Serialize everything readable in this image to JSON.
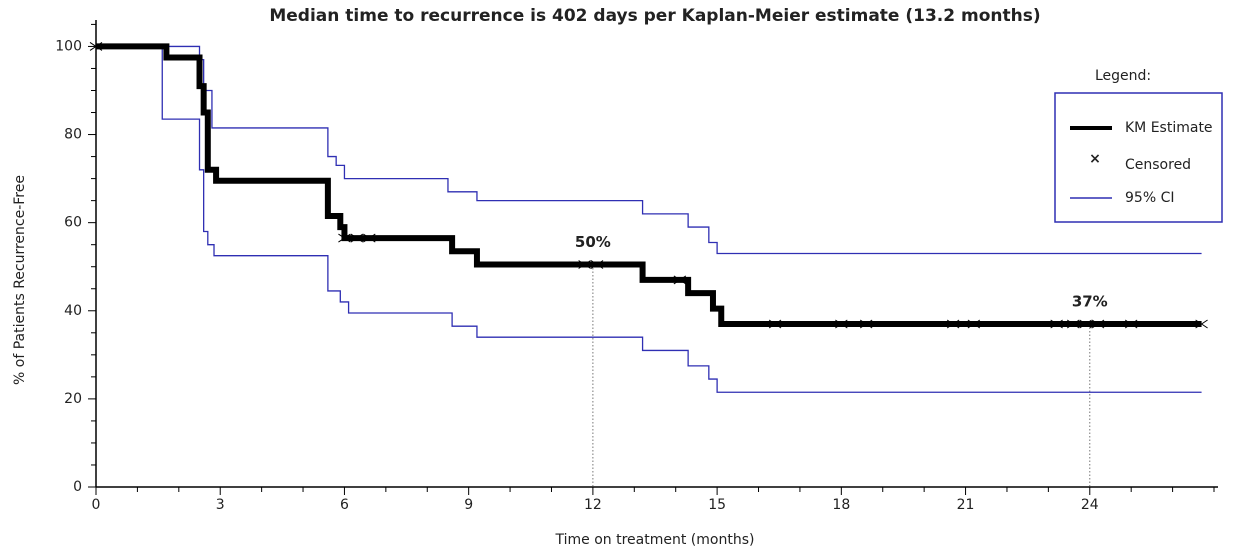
{
  "chart_data": {
    "type": "step",
    "title": "Median time to recurrence is 402 days per Kaplan-Meier estimate (13.2 months)",
    "xlabel": "Time on treatment (months)",
    "ylabel": "% of Patients Recurrence-Free",
    "xlim": [
      0,
      27
    ],
    "ylim": [
      0,
      106
    ],
    "xticks": [
      0,
      3,
      6,
      9,
      12,
      15,
      18,
      21,
      24
    ],
    "yticks": [
      0,
      20,
      40,
      60,
      80,
      100
    ],
    "xminorticks": [
      1,
      2,
      4,
      5,
      7,
      8,
      10,
      11,
      13,
      14,
      16,
      17,
      19,
      20,
      22,
      23,
      25,
      26,
      27
    ],
    "yminorticks": [
      5,
      10,
      15,
      25,
      30,
      35,
      45,
      50,
      55,
      65,
      70,
      75,
      85,
      90,
      95,
      105
    ],
    "legend_title": "Legend:",
    "legend": "upper right",
    "series": [
      {
        "name": "KM Estimate",
        "color": "#000000",
        "x": [
          0,
          1.7,
          1.7,
          2.5,
          2.5,
          2.6,
          2.6,
          2.7,
          2.7,
          2.9,
          2.9,
          5.6,
          5.6,
          5.9,
          5.9,
          6.0,
          6.0,
          8.6,
          8.6,
          9.2,
          9.2,
          13.2,
          13.2,
          14.3,
          14.3,
          14.9,
          14.9,
          15.1,
          15.1,
          26.7
        ],
        "values": [
          100,
          100,
          97.5,
          97.5,
          91,
          91,
          85,
          85,
          72,
          72,
          69.5,
          69.5,
          61.5,
          61.5,
          59,
          59,
          56.5,
          56.5,
          53.5,
          53.5,
          50.5,
          50.5,
          47,
          47,
          44,
          44,
          40.5,
          40.5,
          37,
          37
        ]
      },
      {
        "name": "Censored",
        "color": "#000000",
        "marker": "x",
        "x": [
          0,
          6.0,
          6.3,
          6.6,
          11.8,
          12.1,
          14.1,
          16.4,
          18.0,
          18.6,
          20.7,
          21.2,
          23.2,
          23.6,
          23.9,
          24.2,
          25.0,
          26.7
        ],
        "values": [
          100,
          56.5,
          56.5,
          56.5,
          50.5,
          50.5,
          47,
          37,
          37,
          37,
          37,
          37,
          37,
          37,
          37,
          37,
          37,
          37
        ]
      },
      {
        "name": "95% CI",
        "color": "#2f2fb3",
        "upper": {
          "x": [
            0,
            2.5,
            2.5,
            2.6,
            2.6,
            2.8,
            2.8,
            5.6,
            5.6,
            5.8,
            5.8,
            6.0,
            6.0,
            8.5,
            8.5,
            9.2,
            9.2,
            13.2,
            13.2,
            14.3,
            14.3,
            14.8,
            14.8,
            15.0,
            15.0,
            26.7
          ],
          "values": [
            100,
            100,
            97,
            97,
            90,
            90,
            81.5,
            81.5,
            75,
            75,
            73,
            73,
            70,
            70,
            67,
            67,
            65,
            65,
            62,
            62,
            59,
            59,
            55.5,
            55.5,
            53,
            53
          ]
        },
        "lower": {
          "x": [
            0,
            1.6,
            1.6,
            2.5,
            2.5,
            2.6,
            2.6,
            2.7,
            2.7,
            2.85,
            2.85,
            5.6,
            5.6,
            5.9,
            5.9,
            6.1,
            6.1,
            8.6,
            8.6,
            9.2,
            9.2,
            13.2,
            13.2,
            14.3,
            14.3,
            14.8,
            14.8,
            15.0,
            15.0,
            26.7
          ],
          "values": [
            100,
            100,
            83.5,
            83.5,
            72,
            72,
            58,
            58,
            55,
            55,
            52.5,
            52.5,
            44.5,
            44.5,
            42,
            42,
            39.5,
            39.5,
            36.5,
            36.5,
            34,
            34,
            31,
            31,
            27.5,
            27.5,
            24.5,
            24.5,
            21.5,
            21.5
          ]
        }
      }
    ],
    "annotations": [
      {
        "text": "50%",
        "x": 12,
        "y": 50.5
      },
      {
        "text": "37%",
        "x": 24,
        "y": 37
      }
    ]
  }
}
